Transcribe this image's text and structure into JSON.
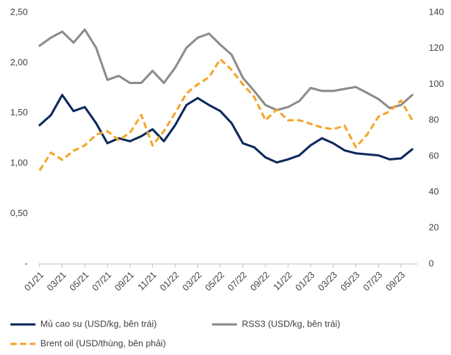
{
  "chart_data": {
    "type": "line",
    "categories": [
      "01/21",
      null,
      "03/21",
      null,
      "05/21",
      null,
      "07/21",
      null,
      "09/21",
      null,
      "11/21",
      null,
      "01/22",
      null,
      "03/22",
      null,
      "05/22",
      null,
      "07/22",
      null,
      "09/22",
      null,
      "11/22",
      null,
      "01/23",
      null,
      "03/23",
      null,
      "05/23",
      null,
      "07/23",
      null,
      "09/23",
      null
    ],
    "series": [
      {
        "name": "Mủ cao su (USD/kg, bên trái)",
        "color": "#0d2a5c",
        "axis": "y",
        "dash": false,
        "values": [
          1.38,
          1.48,
          1.68,
          1.52,
          1.56,
          1.4,
          1.2,
          1.25,
          1.22,
          1.27,
          1.34,
          1.22,
          1.38,
          1.58,
          1.65,
          1.58,
          1.52,
          1.4,
          1.2,
          1.16,
          1.06,
          1.01,
          1.04,
          1.08,
          1.18,
          1.25,
          1.2,
          1.13,
          1.1,
          1.09,
          1.08,
          1.04,
          1.05,
          1.14
        ]
      },
      {
        "name": "RSS3 (USD/kg, bên trái)",
        "color": "#8c8c8c",
        "axis": "y",
        "dash": false,
        "values": [
          2.17,
          2.25,
          2.31,
          2.2,
          2.33,
          2.15,
          1.83,
          1.87,
          1.8,
          1.8,
          1.92,
          1.8,
          1.95,
          2.15,
          2.25,
          2.29,
          2.18,
          2.08,
          1.85,
          1.72,
          1.58,
          1.53,
          1.56,
          1.62,
          1.75,
          1.72,
          1.72,
          1.74,
          1.76,
          1.7,
          1.64,
          1.55,
          1.58,
          1.68
        ]
      },
      {
        "name": "Brent oil (USD/thùng, bên phải)",
        "color": "#f5a52a",
        "axis": "y2",
        "dash": true,
        "values": [
          52,
          62,
          58,
          63,
          66,
          72,
          74,
          69,
          73,
          83,
          66,
          74,
          84,
          95,
          100,
          104,
          114,
          108,
          100,
          93,
          80,
          86,
          80,
          80,
          78,
          76,
          75,
          77,
          65,
          72,
          82,
          85,
          91,
          80
        ]
      }
    ],
    "ylim": [
      0,
      2.5
    ],
    "yticks": [
      {
        "value": 0,
        "label": "-"
      },
      {
        "value": 0.5,
        "label": "0,50"
      },
      {
        "value": 1,
        "label": "1,00"
      },
      {
        "value": 1.5,
        "label": "1,50"
      },
      {
        "value": 2,
        "label": "2,00"
      },
      {
        "value": 2.5,
        "label": "2,50"
      }
    ],
    "y2lim": [
      0,
      140
    ],
    "y2ticks": [
      0,
      20,
      40,
      60,
      80,
      100,
      120,
      140
    ],
    "grid": false,
    "legend": "bottom"
  }
}
